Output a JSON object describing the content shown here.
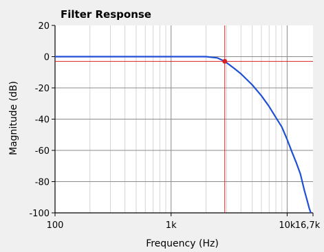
{
  "chart_data": {
    "type": "line",
    "title": "Filter Response",
    "xlabel": "Frequency (Hz)",
    "ylabel": "Magnitude (dB)",
    "x_scale": "log",
    "xlim": [
      100,
      16700
    ],
    "ylim": [
      -100,
      20
    ],
    "grid": true,
    "x_ticks": [
      {
        "value": 100,
        "label": "100"
      },
      {
        "value": 1000,
        "label": "1k"
      },
      {
        "value": 10000,
        "label": "10k"
      },
      {
        "value": 16700,
        "label": "16,7k"
      }
    ],
    "y_ticks": [
      {
        "value": 20,
        "label": "20"
      },
      {
        "value": 0,
        "label": "0"
      },
      {
        "value": -20,
        "label": "-20"
      },
      {
        "value": -40,
        "label": "-40"
      },
      {
        "value": -60,
        "label": "-60"
      },
      {
        "value": -80,
        "label": "-80"
      },
      {
        "value": -100,
        "label": "-100"
      }
    ],
    "series": [
      {
        "color": "#1f4fd6",
        "x": [
          100,
          200,
          500,
          1000,
          1500,
          2000,
          2500,
          2900,
          3500,
          4000,
          5000,
          6000,
          7000,
          8000,
          9000,
          10000,
          11000,
          12000,
          13000,
          13500,
          14000,
          14500,
          15000,
          15500,
          16000
        ],
        "y": [
          0,
          0,
          0,
          0,
          0,
          0,
          -0.8,
          -3,
          -7.5,
          -11,
          -18,
          -25,
          -32,
          -39,
          -45,
          -53,
          -61,
          -68,
          -75,
          -80,
          -85,
          -89,
          -93,
          -97,
          -100
        ]
      }
    ],
    "cutoff_marker": {
      "x": 2900,
      "y": -3,
      "color": "#d92020"
    },
    "colors": {
      "background": "#f0f0f0",
      "plot_background": "#ffffff",
      "grid_major": "#8a8a8a",
      "grid_minor": "#d4d4d4",
      "axis": "#000000"
    }
  }
}
